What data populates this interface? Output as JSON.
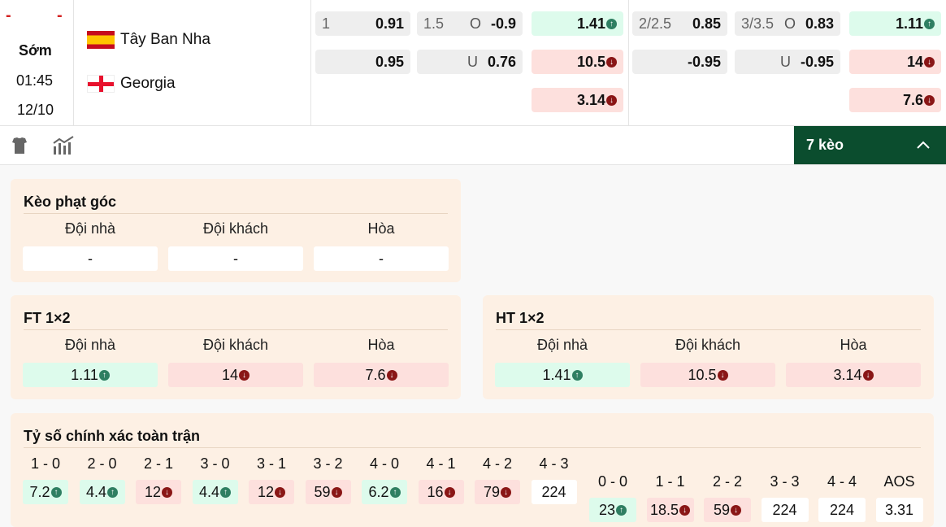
{
  "match": {
    "score_home": "-",
    "score_away": "-",
    "status": "Sớm",
    "time": "01:45",
    "date": "12/10",
    "home": "Tây Ban Nha",
    "away": "Georgia"
  },
  "odds": {
    "ft_hdp": {
      "line": "1",
      "home": "0.91",
      "away": "0.95"
    },
    "ft_ou": {
      "line": "1.5",
      "over_label": "O",
      "over": "-0.9",
      "under_label": "U",
      "under": "0.76"
    },
    "ht_1x2": {
      "home": "1.41",
      "away": "10.5",
      "draw": "3.14"
    },
    "ft_hdp2": {
      "line": "2/2.5",
      "home": "0.85",
      "away": "-0.95"
    },
    "ft_ou2": {
      "line": "3/3.5",
      "over_label": "O",
      "over": "0.83",
      "under_label": "U",
      "under": "-0.95"
    },
    "ft_1x2": {
      "home": "1.11",
      "away": "14",
      "draw": "7.6"
    }
  },
  "toolbar": {
    "more_label": "7 kèo",
    "icons": [
      "shirt-icon",
      "stats-icon",
      "chevron-up-icon"
    ]
  },
  "colors": {
    "up": "#2f7f62",
    "down": "#8a1616",
    "accent": "#0b4d2e"
  },
  "corner": {
    "title": "Kèo phạt góc",
    "headers": [
      "Đội nhà",
      "Đội khách",
      "Hòa"
    ],
    "values": [
      "-",
      "-",
      "-"
    ]
  },
  "ft12": {
    "title": "FT 1×2",
    "headers": [
      "Đội nhà",
      "Đội khách",
      "Hòa"
    ],
    "values": [
      "1.11",
      "14",
      "7.6"
    ],
    "trend": [
      "up",
      "down",
      "down"
    ]
  },
  "ht12": {
    "title": "HT 1×2",
    "headers": [
      "Đội nhà",
      "Đội khách",
      "Hòa"
    ],
    "values": [
      "1.41",
      "10.5",
      "3.14"
    ],
    "trend": [
      "up",
      "down",
      "down"
    ]
  },
  "exact": {
    "title": "Tỷ số chính xác toàn trận",
    "home_wins": [
      {
        "s": "1 - 0",
        "v": "7.2",
        "t": "up"
      },
      {
        "s": "2 - 0",
        "v": "4.4",
        "t": "up"
      },
      {
        "s": "2 - 1",
        "v": "12",
        "t": "down"
      },
      {
        "s": "3 - 0",
        "v": "4.4",
        "t": "up"
      },
      {
        "s": "3 - 1",
        "v": "12",
        "t": "down"
      },
      {
        "s": "3 - 2",
        "v": "59",
        "t": "down"
      },
      {
        "s": "4 - 0",
        "v": "6.2",
        "t": "up"
      },
      {
        "s": "4 - 1",
        "v": "16",
        "t": "down"
      },
      {
        "s": "4 - 2",
        "v": "79",
        "t": "down"
      },
      {
        "s": "4 - 3",
        "v": "224",
        "t": "none"
      }
    ],
    "draws": [
      {
        "s": "0 - 0",
        "v": "23",
        "t": "up"
      },
      {
        "s": "1 - 1",
        "v": "18.5",
        "t": "down"
      },
      {
        "s": "2 - 2",
        "v": "59",
        "t": "down"
      },
      {
        "s": "3 - 3",
        "v": "224",
        "t": "none"
      },
      {
        "s": "4 - 4",
        "v": "224",
        "t": "none"
      },
      {
        "s": "AOS",
        "v": "3.31",
        "t": "none"
      }
    ]
  }
}
